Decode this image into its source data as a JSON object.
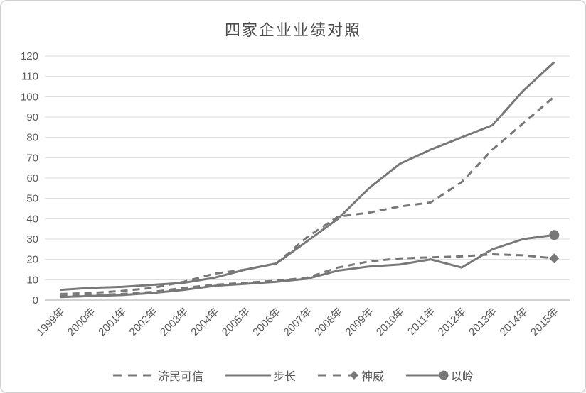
{
  "chart_data": {
    "type": "line",
    "title": "四家企业业绩对照",
    "categories": [
      "1999年",
      "2000年",
      "2001年",
      "2002年",
      "2003年",
      "2004年",
      "2005年",
      "2006年",
      "2007年",
      "2008年",
      "2009年",
      "2010年",
      "2011年",
      "2012年",
      "2013年",
      "2014年",
      "2015年"
    ],
    "series": [
      {
        "name": "济民可信",
        "style": "dashed",
        "marker": "none",
        "values": [
          3,
          3.5,
          4.5,
          6,
          9,
          13,
          15,
          18,
          31,
          41,
          43,
          46,
          48,
          58,
          74,
          87,
          100
        ]
      },
      {
        "name": "步长",
        "style": "solid",
        "marker": "none",
        "values": [
          5,
          6,
          6.5,
          7.5,
          8.5,
          11,
          15,
          18,
          29,
          40,
          55,
          67,
          74,
          80,
          86,
          103,
          117
        ]
      },
      {
        "name": "神威",
        "style": "dashed",
        "marker": "diamond-last",
        "values": [
          2,
          2.5,
          3,
          4,
          6,
          7.5,
          8.5,
          9.5,
          11,
          16,
          19,
          20.5,
          21,
          21.5,
          22.5,
          22,
          20.5
        ]
      },
      {
        "name": "以岭",
        "style": "solid",
        "marker": "circle-last",
        "values": [
          1.5,
          2,
          2.5,
          3.5,
          5,
          7,
          8,
          9,
          10.5,
          14.5,
          16.5,
          17.5,
          20,
          16,
          25,
          30,
          32
        ]
      }
    ],
    "ylim": [
      0,
      120
    ],
    "ytick_step": 10,
    "ytick_labels": [
      "0",
      "10",
      "20",
      "30",
      "40",
      "50",
      "60",
      "70",
      "80",
      "90",
      "100",
      "110",
      "120"
    ],
    "grid": "horizontal",
    "legend_position": "bottom",
    "line_color": "#787878",
    "grid_color": "#d9d9d9",
    "axis_color": "#a6a6a6",
    "text_color": "#595959"
  }
}
